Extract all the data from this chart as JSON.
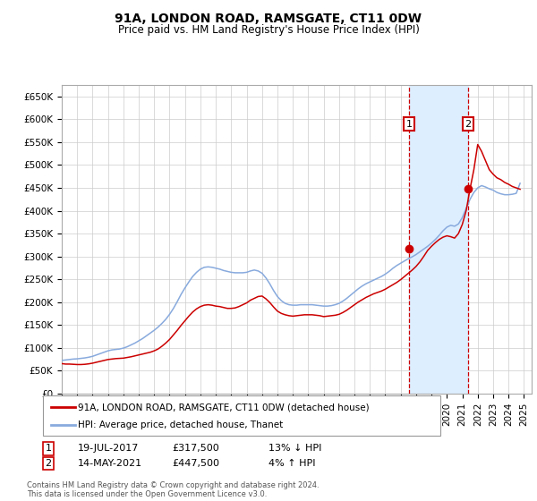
{
  "title": "91A, LONDON ROAD, RAMSGATE, CT11 0DW",
  "subtitle": "Price paid vs. HM Land Registry's House Price Index (HPI)",
  "ylim": [
    0,
    675000
  ],
  "yticks": [
    0,
    50000,
    100000,
    150000,
    200000,
    250000,
    300000,
    350000,
    400000,
    450000,
    500000,
    550000,
    600000,
    650000
  ],
  "ytick_labels": [
    "£0",
    "£50K",
    "£100K",
    "£150K",
    "£200K",
    "£250K",
    "£300K",
    "£350K",
    "£400K",
    "£450K",
    "£500K",
    "£550K",
    "£600K",
    "£650K"
  ],
  "xlim_start": 1995.0,
  "xlim_end": 2025.5,
  "marker1_x": 2017.54,
  "marker1_y": 317500,
  "marker2_x": 2021.37,
  "marker2_y": 447500,
  "marker1_date": "19-JUL-2017",
  "marker1_price": "£317,500",
  "marker1_note": "13% ↓ HPI",
  "marker2_date": "14-MAY-2021",
  "marker2_price": "£447,500",
  "marker2_note": "4% ↑ HPI",
  "shade_color": "#ddeeff",
  "line1_color": "#cc0000",
  "line2_color": "#88aadd",
  "marker_box_color": "#cc0000",
  "grid_color": "#cccccc",
  "bg_color": "#ffffff",
  "legend_line1": "91A, LONDON ROAD, RAMSGATE, CT11 0DW (detached house)",
  "legend_line2": "HPI: Average price, detached house, Thanet",
  "footer": "Contains HM Land Registry data © Crown copyright and database right 2024.\nThis data is licensed under the Open Government Licence v3.0.",
  "hpi_years": [
    1995.0,
    1995.25,
    1995.5,
    1995.75,
    1996.0,
    1996.25,
    1996.5,
    1996.75,
    1997.0,
    1997.25,
    1997.5,
    1997.75,
    1998.0,
    1998.25,
    1998.5,
    1998.75,
    1999.0,
    1999.25,
    1999.5,
    1999.75,
    2000.0,
    2000.25,
    2000.5,
    2000.75,
    2001.0,
    2001.25,
    2001.5,
    2001.75,
    2002.0,
    2002.25,
    2002.5,
    2002.75,
    2003.0,
    2003.25,
    2003.5,
    2003.75,
    2004.0,
    2004.25,
    2004.5,
    2004.75,
    2005.0,
    2005.25,
    2005.5,
    2005.75,
    2006.0,
    2006.25,
    2006.5,
    2006.75,
    2007.0,
    2007.25,
    2007.5,
    2007.75,
    2008.0,
    2008.25,
    2008.5,
    2008.75,
    2009.0,
    2009.25,
    2009.5,
    2009.75,
    2010.0,
    2010.25,
    2010.5,
    2010.75,
    2011.0,
    2011.25,
    2011.5,
    2011.75,
    2012.0,
    2012.25,
    2012.5,
    2012.75,
    2013.0,
    2013.25,
    2013.5,
    2013.75,
    2014.0,
    2014.25,
    2014.5,
    2014.75,
    2015.0,
    2015.25,
    2015.5,
    2015.75,
    2016.0,
    2016.25,
    2016.5,
    2016.75,
    2017.0,
    2017.25,
    2017.5,
    2017.75,
    2018.0,
    2018.25,
    2018.5,
    2018.75,
    2019.0,
    2019.25,
    2019.5,
    2019.75,
    2020.0,
    2020.25,
    2020.5,
    2020.75,
    2021.0,
    2021.25,
    2021.5,
    2021.75,
    2022.0,
    2022.25,
    2022.5,
    2022.75,
    2023.0,
    2023.25,
    2023.5,
    2023.75,
    2024.0,
    2024.25,
    2024.5,
    2024.75
  ],
  "hpi_values": [
    72000,
    73000,
    74000,
    75000,
    75500,
    76500,
    77500,
    79000,
    81000,
    84000,
    87000,
    90000,
    93000,
    95000,
    96000,
    97000,
    99000,
    102000,
    106000,
    110000,
    115000,
    120000,
    126000,
    132000,
    138000,
    145000,
    153000,
    162000,
    173000,
    186000,
    201000,
    217000,
    231000,
    244000,
    256000,
    265000,
    272000,
    276000,
    277000,
    276000,
    274000,
    272000,
    269000,
    267000,
    265000,
    264000,
    264000,
    264000,
    265000,
    268000,
    270000,
    268000,
    263000,
    253000,
    240000,
    225000,
    212000,
    203000,
    197000,
    194000,
    193000,
    193000,
    194000,
    194000,
    194000,
    194000,
    193000,
    192000,
    191000,
    191000,
    192000,
    194000,
    197000,
    202000,
    208000,
    215000,
    222000,
    229000,
    235000,
    240000,
    244000,
    248000,
    252000,
    256000,
    261000,
    267000,
    274000,
    280000,
    285000,
    290000,
    295000,
    299000,
    304000,
    310000,
    316000,
    322000,
    329000,
    337000,
    346000,
    356000,
    364000,
    368000,
    366000,
    371000,
    385000,
    405000,
    425000,
    440000,
    450000,
    455000,
    452000,
    448000,
    445000,
    440000,
    437000,
    435000,
    435000,
    436000,
    438000,
    460000
  ],
  "red_years": [
    1995.0,
    1995.25,
    1995.5,
    1995.75,
    1996.0,
    1996.25,
    1996.5,
    1996.75,
    1997.0,
    1997.25,
    1997.5,
    1997.75,
    1998.0,
    1998.25,
    1998.5,
    1998.75,
    1999.0,
    1999.25,
    1999.5,
    1999.75,
    2000.0,
    2000.25,
    2000.5,
    2000.75,
    2001.0,
    2001.25,
    2001.5,
    2001.75,
    2002.0,
    2002.25,
    2002.5,
    2002.75,
    2003.0,
    2003.25,
    2003.5,
    2003.75,
    2004.0,
    2004.25,
    2004.5,
    2004.75,
    2005.0,
    2005.25,
    2005.5,
    2005.75,
    2006.0,
    2006.25,
    2006.5,
    2006.75,
    2007.0,
    2007.25,
    2007.5,
    2007.75,
    2008.0,
    2008.25,
    2008.5,
    2008.75,
    2009.0,
    2009.25,
    2009.5,
    2009.75,
    2010.0,
    2010.25,
    2010.5,
    2010.75,
    2011.0,
    2011.25,
    2011.5,
    2011.75,
    2012.0,
    2012.25,
    2012.5,
    2012.75,
    2013.0,
    2013.25,
    2013.5,
    2013.75,
    2014.0,
    2014.25,
    2014.5,
    2014.75,
    2015.0,
    2015.25,
    2015.5,
    2015.75,
    2016.0,
    2016.25,
    2016.5,
    2016.75,
    2017.0,
    2017.25,
    2017.5,
    2017.75,
    2018.0,
    2018.25,
    2018.5,
    2018.75,
    2019.0,
    2019.25,
    2019.5,
    2019.75,
    2020.0,
    2020.25,
    2020.5,
    2020.75,
    2021.0,
    2021.25,
    2021.5,
    2021.75,
    2022.0,
    2022.25,
    2022.5,
    2022.75,
    2023.0,
    2023.25,
    2023.5,
    2023.75,
    2024.0,
    2024.25,
    2024.5,
    2024.75
  ],
  "red_values": [
    65000,
    64000,
    64000,
    63500,
    63000,
    63000,
    63500,
    64500,
    66000,
    68000,
    70000,
    72000,
    74000,
    75000,
    76000,
    76500,
    77000,
    78500,
    80000,
    82000,
    84000,
    86000,
    88000,
    90000,
    93000,
    97000,
    103000,
    110000,
    118000,
    128000,
    138000,
    149000,
    159000,
    169000,
    178000,
    185000,
    190000,
    193000,
    194000,
    193000,
    191000,
    190000,
    188000,
    186000,
    186000,
    187000,
    190000,
    194000,
    198000,
    204000,
    208000,
    212000,
    213000,
    207000,
    199000,
    189000,
    180000,
    175000,
    172000,
    170000,
    169000,
    170000,
    171000,
    172000,
    172000,
    172000,
    171000,
    170000,
    168000,
    169000,
    170000,
    171000,
    173000,
    177000,
    182000,
    188000,
    194000,
    200000,
    205000,
    210000,
    214000,
    218000,
    221000,
    224000,
    228000,
    233000,
    238000,
    243000,
    249000,
    256000,
    263000,
    270000,
    278000,
    288000,
    300000,
    313000,
    322000,
    330000,
    337000,
    342000,
    345000,
    343000,
    340000,
    350000,
    370000,
    400000,
    447500,
    490000,
    545000,
    530000,
    510000,
    490000,
    480000,
    472000,
    468000,
    462000,
    458000,
    453000,
    450000,
    447000
  ]
}
